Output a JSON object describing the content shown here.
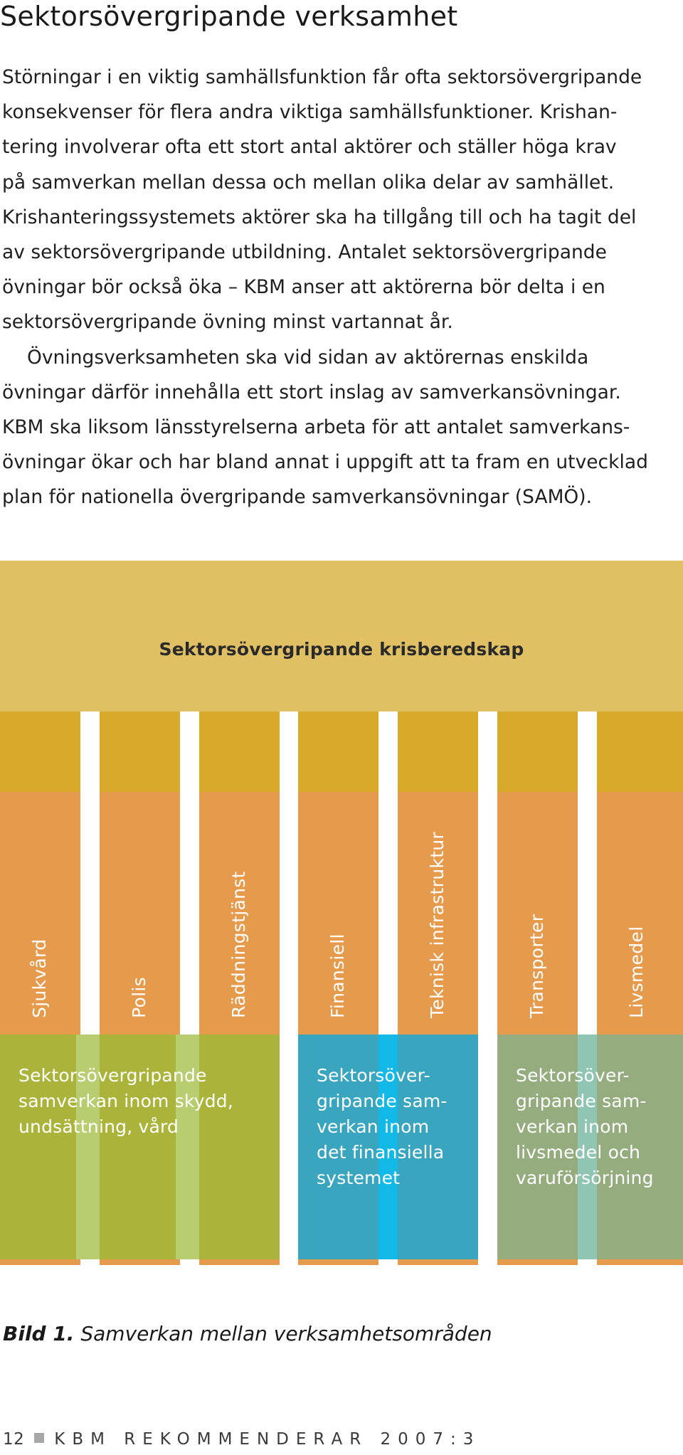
{
  "title": "Sektorsövergripande verksamhet",
  "body_lines": [
    "Störningar i en viktig samhällsfunktion får ofta sektorsövergripande",
    "konsekvenser för flera andra viktiga samhällsfunktioner. Krishan-",
    "tering involverar ofta ett stort antal aktörer och ställer höga krav",
    "på samverkan mellan dessa och mellan olika delar av samhället.",
    "Krishanteringssystemets aktörer ska ha tillgång till och ha tagit del",
    "av sektorsövergripande utbildning. Antalet sektorsövergripande",
    "övningar bör också öka – KBM anser att aktörerna bör delta i en",
    "sektorsövergripande övning minst vartannat år.",
    "Övningsverksamheten ska vid sidan av aktörernas enskilda",
    "övningar därför innehålla ett stort inslag av samverkansövningar.",
    "KBM ska liksom länsstyrelserna arbeta för att antalet samverkans-",
    "övningar ökar och har bland annat i uppgift att ta fram en utvecklad",
    "plan för nationella övergripande samverkansövningar (SAMÖ)."
  ],
  "diagram": {
    "header": "Sektorsövergripande krisberedskap",
    "sectors": [
      "Sjukvård",
      "Polis",
      "Räddningstjänst",
      "Finansiell",
      "Teknisk infrastruktur",
      "Transporter",
      "Livsmedel"
    ],
    "groups": [
      "Sektorsövergripande\nsamverkan inom skydd,\nundsättning, vård",
      "Sektorsöver-\ngripande sam-\nverkan inom\ndet finansiella\nsystemet",
      "Sektorsöver-\ngripande sam-\nverkan inom\nlivsmedel och\nvaruförsörjning"
    ],
    "colors": {
      "background": "#e0c063",
      "column": "#e59a4c",
      "column_top": "#d9a929",
      "group_1": "#aab43a",
      "group_1_stripe": "#b8cc70",
      "group_2": "#3aa5be",
      "group_2_stripe": "#12b8e6",
      "group_3": "#95ac7f",
      "group_3_stripe": "#8fc5b2"
    }
  },
  "caption": {
    "label": "Bild 1.",
    "text": "Samverkan mellan verksamhetsområden"
  },
  "footer": {
    "page_number": "12",
    "publication": "KBM REKOMMENDERAR 2007:3"
  }
}
